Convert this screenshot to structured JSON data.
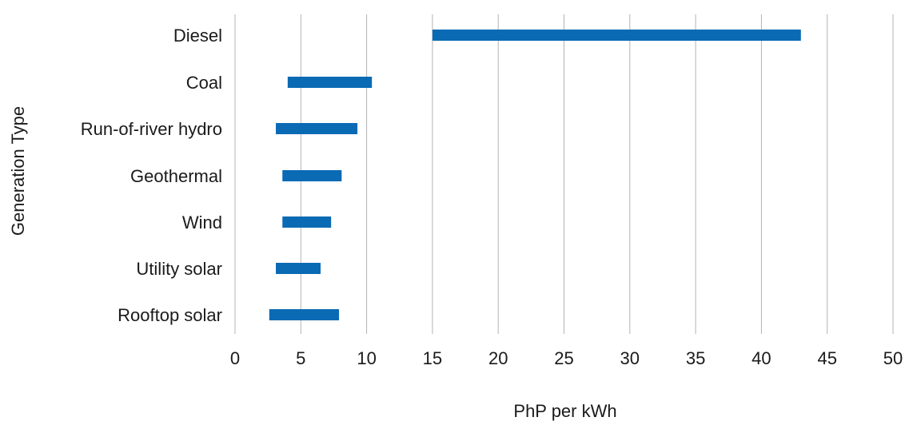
{
  "chart_data": {
    "type": "bar",
    "orientation": "horizontal",
    "style": "floating-range",
    "title": "",
    "xlabel": "PhP per kWh",
    "ylabel": "Generation Type",
    "xlim": [
      0,
      50
    ],
    "xticks": [
      "0",
      "5",
      "10",
      "15",
      "20",
      "25",
      "30",
      "35",
      "40",
      "45",
      "50"
    ],
    "categories": [
      "Diesel",
      "Coal",
      "Run-of-river hydro",
      "Geothermal",
      "Wind",
      "Utility solar",
      "Rooftop solar"
    ],
    "ranges": [
      [
        15,
        43
      ],
      [
        4,
        10.4
      ],
      [
        3.1,
        9.3
      ],
      [
        3.6,
        8.1
      ],
      [
        3.6,
        7.3
      ],
      [
        3.1,
        6.5
      ],
      [
        2.6,
        7.9
      ]
    ],
    "grid": true,
    "bar_color": "#0a6ab4",
    "grid_color": "#b3b3b3"
  }
}
